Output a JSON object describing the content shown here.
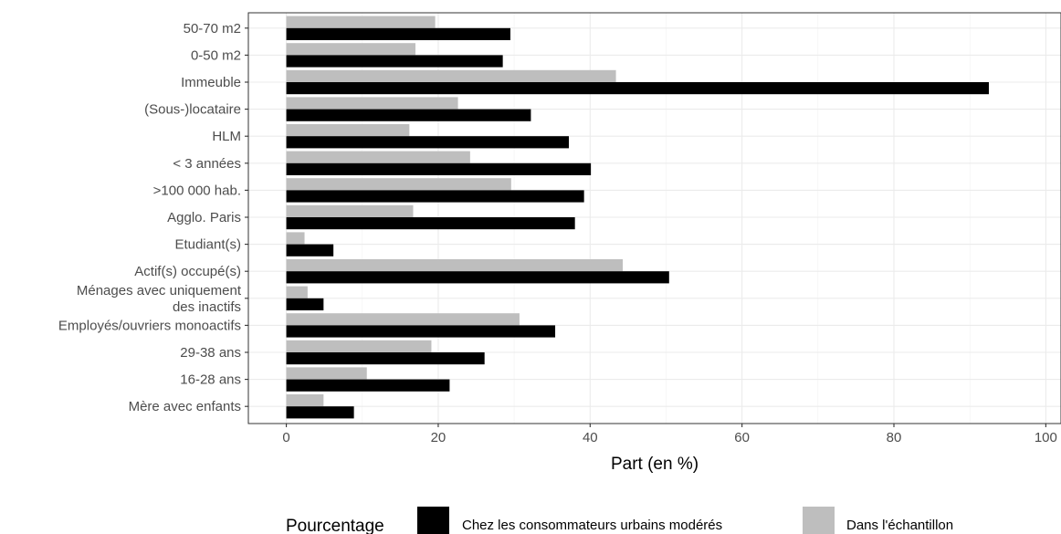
{
  "chart_data": {
    "type": "bar",
    "orientation": "horizontal",
    "categories": [
      "50-70 m2",
      "0-50 m2",
      "Immeuble",
      "(Sous-)locataire",
      "HLM",
      "< 3 années",
      ">100 000 hab.",
      "Agglo. Paris",
      "Etudiant(s)",
      "Actif(s) occupé(s)",
      "Ménages avec uniquement\ndes inactifs",
      "Employés/ouvriers monoactifs",
      "29-38 ans",
      "16-28 ans",
      "Mère avec enfants"
    ],
    "series": [
      {
        "name": "Chez les consommateurs urbains modérés",
        "color": "#000000",
        "values": [
          29.5,
          28.5,
          92.5,
          32.2,
          37.2,
          40.1,
          39.2,
          38.0,
          6.2,
          50.4,
          4.9,
          35.4,
          26.1,
          21.5,
          8.9
        ]
      },
      {
        "name": "Dans l'échantillon",
        "color": "#bebebe",
        "values": [
          19.6,
          17.0,
          43.4,
          22.6,
          16.2,
          24.2,
          29.6,
          16.7,
          2.4,
          44.3,
          2.8,
          30.7,
          19.1,
          10.6,
          4.9
        ]
      }
    ],
    "xlabel": "Part (en %)",
    "xlim": [
      -5,
      102
    ],
    "xticks": [
      0,
      20,
      40,
      60,
      80,
      100
    ],
    "grid": true,
    "legend": {
      "title": "Pourcentage",
      "position": "bottom"
    }
  }
}
